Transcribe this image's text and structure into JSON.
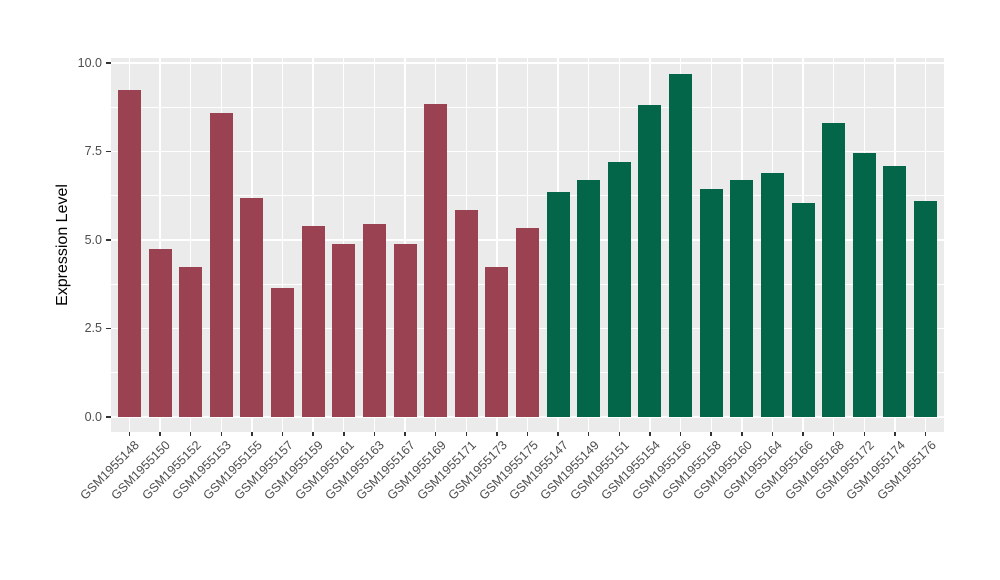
{
  "chart_data": {
    "type": "bar",
    "title": "",
    "xlabel": "",
    "ylabel": "Expression Level",
    "ylim": [
      0,
      10.15
    ],
    "yticks": [
      0,
      2.5,
      5,
      7.5,
      10
    ],
    "ytick_labels": [
      "0.0",
      "2.5",
      "5.0",
      "7.5",
      "10.0"
    ],
    "yticks_minor": [
      1.25,
      3.75,
      6.25,
      8.75
    ],
    "grid": "on",
    "legend_position": "none",
    "panel_background": "#EBEBEB",
    "gridline_color": "#FFFFFF",
    "axis_text_color": "#4D4D4D",
    "axis_title_color": "#000000",
    "tick_mark_color": "#333333",
    "group_colors": {
      "group1": "#9B4252",
      "group2": "#036649"
    },
    "bars": [
      {
        "label": "GSM1955148",
        "value": 9.25,
        "group": "group1"
      },
      {
        "label": "GSM1955150",
        "value": 4.75,
        "group": "group1"
      },
      {
        "label": "GSM1955152",
        "value": 4.25,
        "group": "group1"
      },
      {
        "label": "GSM1955153",
        "value": 8.6,
        "group": "group1"
      },
      {
        "label": "GSM1955155",
        "value": 6.2,
        "group": "group1"
      },
      {
        "label": "GSM1955157",
        "value": 3.65,
        "group": "group1"
      },
      {
        "label": "GSM1955159",
        "value": 5.4,
        "group": "group1"
      },
      {
        "label": "GSM1955161",
        "value": 4.9,
        "group": "group1"
      },
      {
        "label": "GSM1955163",
        "value": 5.45,
        "group": "group1"
      },
      {
        "label": "GSM1955167",
        "value": 4.9,
        "group": "group1"
      },
      {
        "label": "GSM1955169",
        "value": 8.85,
        "group": "group1"
      },
      {
        "label": "GSM1955171",
        "value": 5.85,
        "group": "group1"
      },
      {
        "label": "GSM1955173",
        "value": 4.25,
        "group": "group1"
      },
      {
        "label": "GSM1955175",
        "value": 5.35,
        "group": "group1"
      },
      {
        "label": "GSM1955147",
        "value": 6.35,
        "group": "group2"
      },
      {
        "label": "GSM1955149",
        "value": 6.7,
        "group": "group2"
      },
      {
        "label": "GSM1955151",
        "value": 7.2,
        "group": "group2"
      },
      {
        "label": "GSM1955154",
        "value": 8.8,
        "group": "group2"
      },
      {
        "label": "GSM1955156",
        "value": 9.7,
        "group": "group2"
      },
      {
        "label": "GSM1955158",
        "value": 6.45,
        "group": "group2"
      },
      {
        "label": "GSM1955160",
        "value": 6.7,
        "group": "group2"
      },
      {
        "label": "GSM1955164",
        "value": 6.9,
        "group": "group2"
      },
      {
        "label": "GSM1955166",
        "value": 6.05,
        "group": "group2"
      },
      {
        "label": "GSM1955168",
        "value": 8.3,
        "group": "group2"
      },
      {
        "label": "GSM1955172",
        "value": 7.45,
        "group": "group2"
      },
      {
        "label": "GSM1955174",
        "value": 7.1,
        "group": "group2"
      },
      {
        "label": "GSM1955176",
        "value": 6.1,
        "group": "group2"
      }
    ]
  }
}
